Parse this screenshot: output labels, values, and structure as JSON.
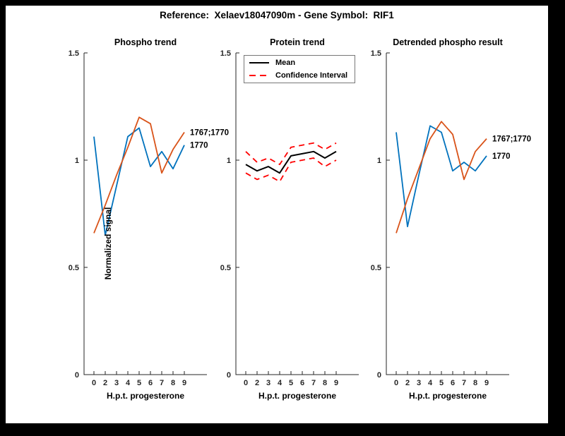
{
  "figure": {
    "title": "Reference:  Xelaev18047090m - Gene Symbol:  RIF1",
    "background_color": "#ffffff",
    "frame_color": "#000000",
    "axis_color": "#262626"
  },
  "chart_data": [
    {
      "type": "line",
      "title": "Phospho trend",
      "xlabel": "H.p.t. progesterone",
      "ylabel": "Normalized signal",
      "x_ticks": [
        "0",
        "2",
        "3",
        "4",
        "5",
        "6",
        "7",
        "8",
        "9"
      ],
      "y_ticks": [
        "0",
        "0.5",
        "1",
        "1.5"
      ],
      "ylim": [
        0,
        1.5
      ],
      "grid": false,
      "series": [
        {
          "name": "1770",
          "color": "#0072BD",
          "style": "solid",
          "width": 1.8,
          "values": [
            1.11,
            0.65,
            0.88,
            1.11,
            1.15,
            0.97,
            1.04,
            0.96,
            1.07
          ],
          "end_label": "1770"
        },
        {
          "name": "1767;1770",
          "color": "#D95319",
          "style": "solid",
          "width": 1.8,
          "values": [
            0.66,
            0.79,
            0.93,
            1.06,
            1.2,
            1.17,
            0.94,
            1.05,
            1.13
          ],
          "end_label": "1767;1770"
        }
      ]
    },
    {
      "type": "line",
      "title": "Protein trend",
      "xlabel": "H.p.t. progesterone",
      "x_ticks": [
        "0",
        "2",
        "3",
        "4",
        "5",
        "6",
        "7",
        "8",
        "9"
      ],
      "y_ticks": [
        "0",
        "0.5",
        "1",
        "1.5"
      ],
      "ylim": [
        0,
        1.5
      ],
      "grid": false,
      "legend": {
        "position": "northwest",
        "entries": [
          {
            "label": "Mean",
            "color": "#000000",
            "style": "solid"
          },
          {
            "label": "Confidence Interval",
            "color": "#FF0000",
            "style": "dashed"
          }
        ]
      },
      "series": [
        {
          "name": "Mean",
          "color": "#000000",
          "style": "solid",
          "width": 2,
          "values": [
            0.98,
            0.95,
            0.97,
            0.94,
            1.02,
            1.03,
            1.04,
            1.01,
            1.04
          ]
        },
        {
          "name": "Confidence Interval upper",
          "color": "#FF0000",
          "style": "dashed",
          "width": 1.8,
          "values": [
            1.04,
            0.99,
            1.01,
            0.98,
            1.06,
            1.07,
            1.08,
            1.05,
            1.08
          ]
        },
        {
          "name": "Confidence Interval lower",
          "color": "#FF0000",
          "style": "dashed",
          "width": 1.8,
          "values": [
            0.94,
            0.91,
            0.93,
            0.9,
            0.99,
            1.0,
            1.01,
            0.97,
            1.0
          ]
        }
      ]
    },
    {
      "type": "line",
      "title": "Detrended phospho result",
      "xlabel": "H.p.t. progesterone",
      "x_ticks": [
        "0",
        "2",
        "3",
        "4",
        "5",
        "6",
        "7",
        "8",
        "9"
      ],
      "y_ticks": [
        "0",
        "0.5",
        "1",
        "1.5"
      ],
      "ylim": [
        0,
        1.5
      ],
      "grid": false,
      "series": [
        {
          "name": "1770",
          "color": "#0072BD",
          "style": "solid",
          "width": 1.8,
          "values": [
            1.13,
            0.69,
            0.93,
            1.16,
            1.13,
            0.95,
            0.99,
            0.95,
            1.02
          ],
          "end_label": "1770"
        },
        {
          "name": "1767;1770",
          "color": "#D95319",
          "style": "solid",
          "width": 1.8,
          "values": [
            0.66,
            0.82,
            0.96,
            1.1,
            1.18,
            1.12,
            0.91,
            1.04,
            1.1
          ],
          "end_label": "1767;1770"
        }
      ]
    }
  ]
}
